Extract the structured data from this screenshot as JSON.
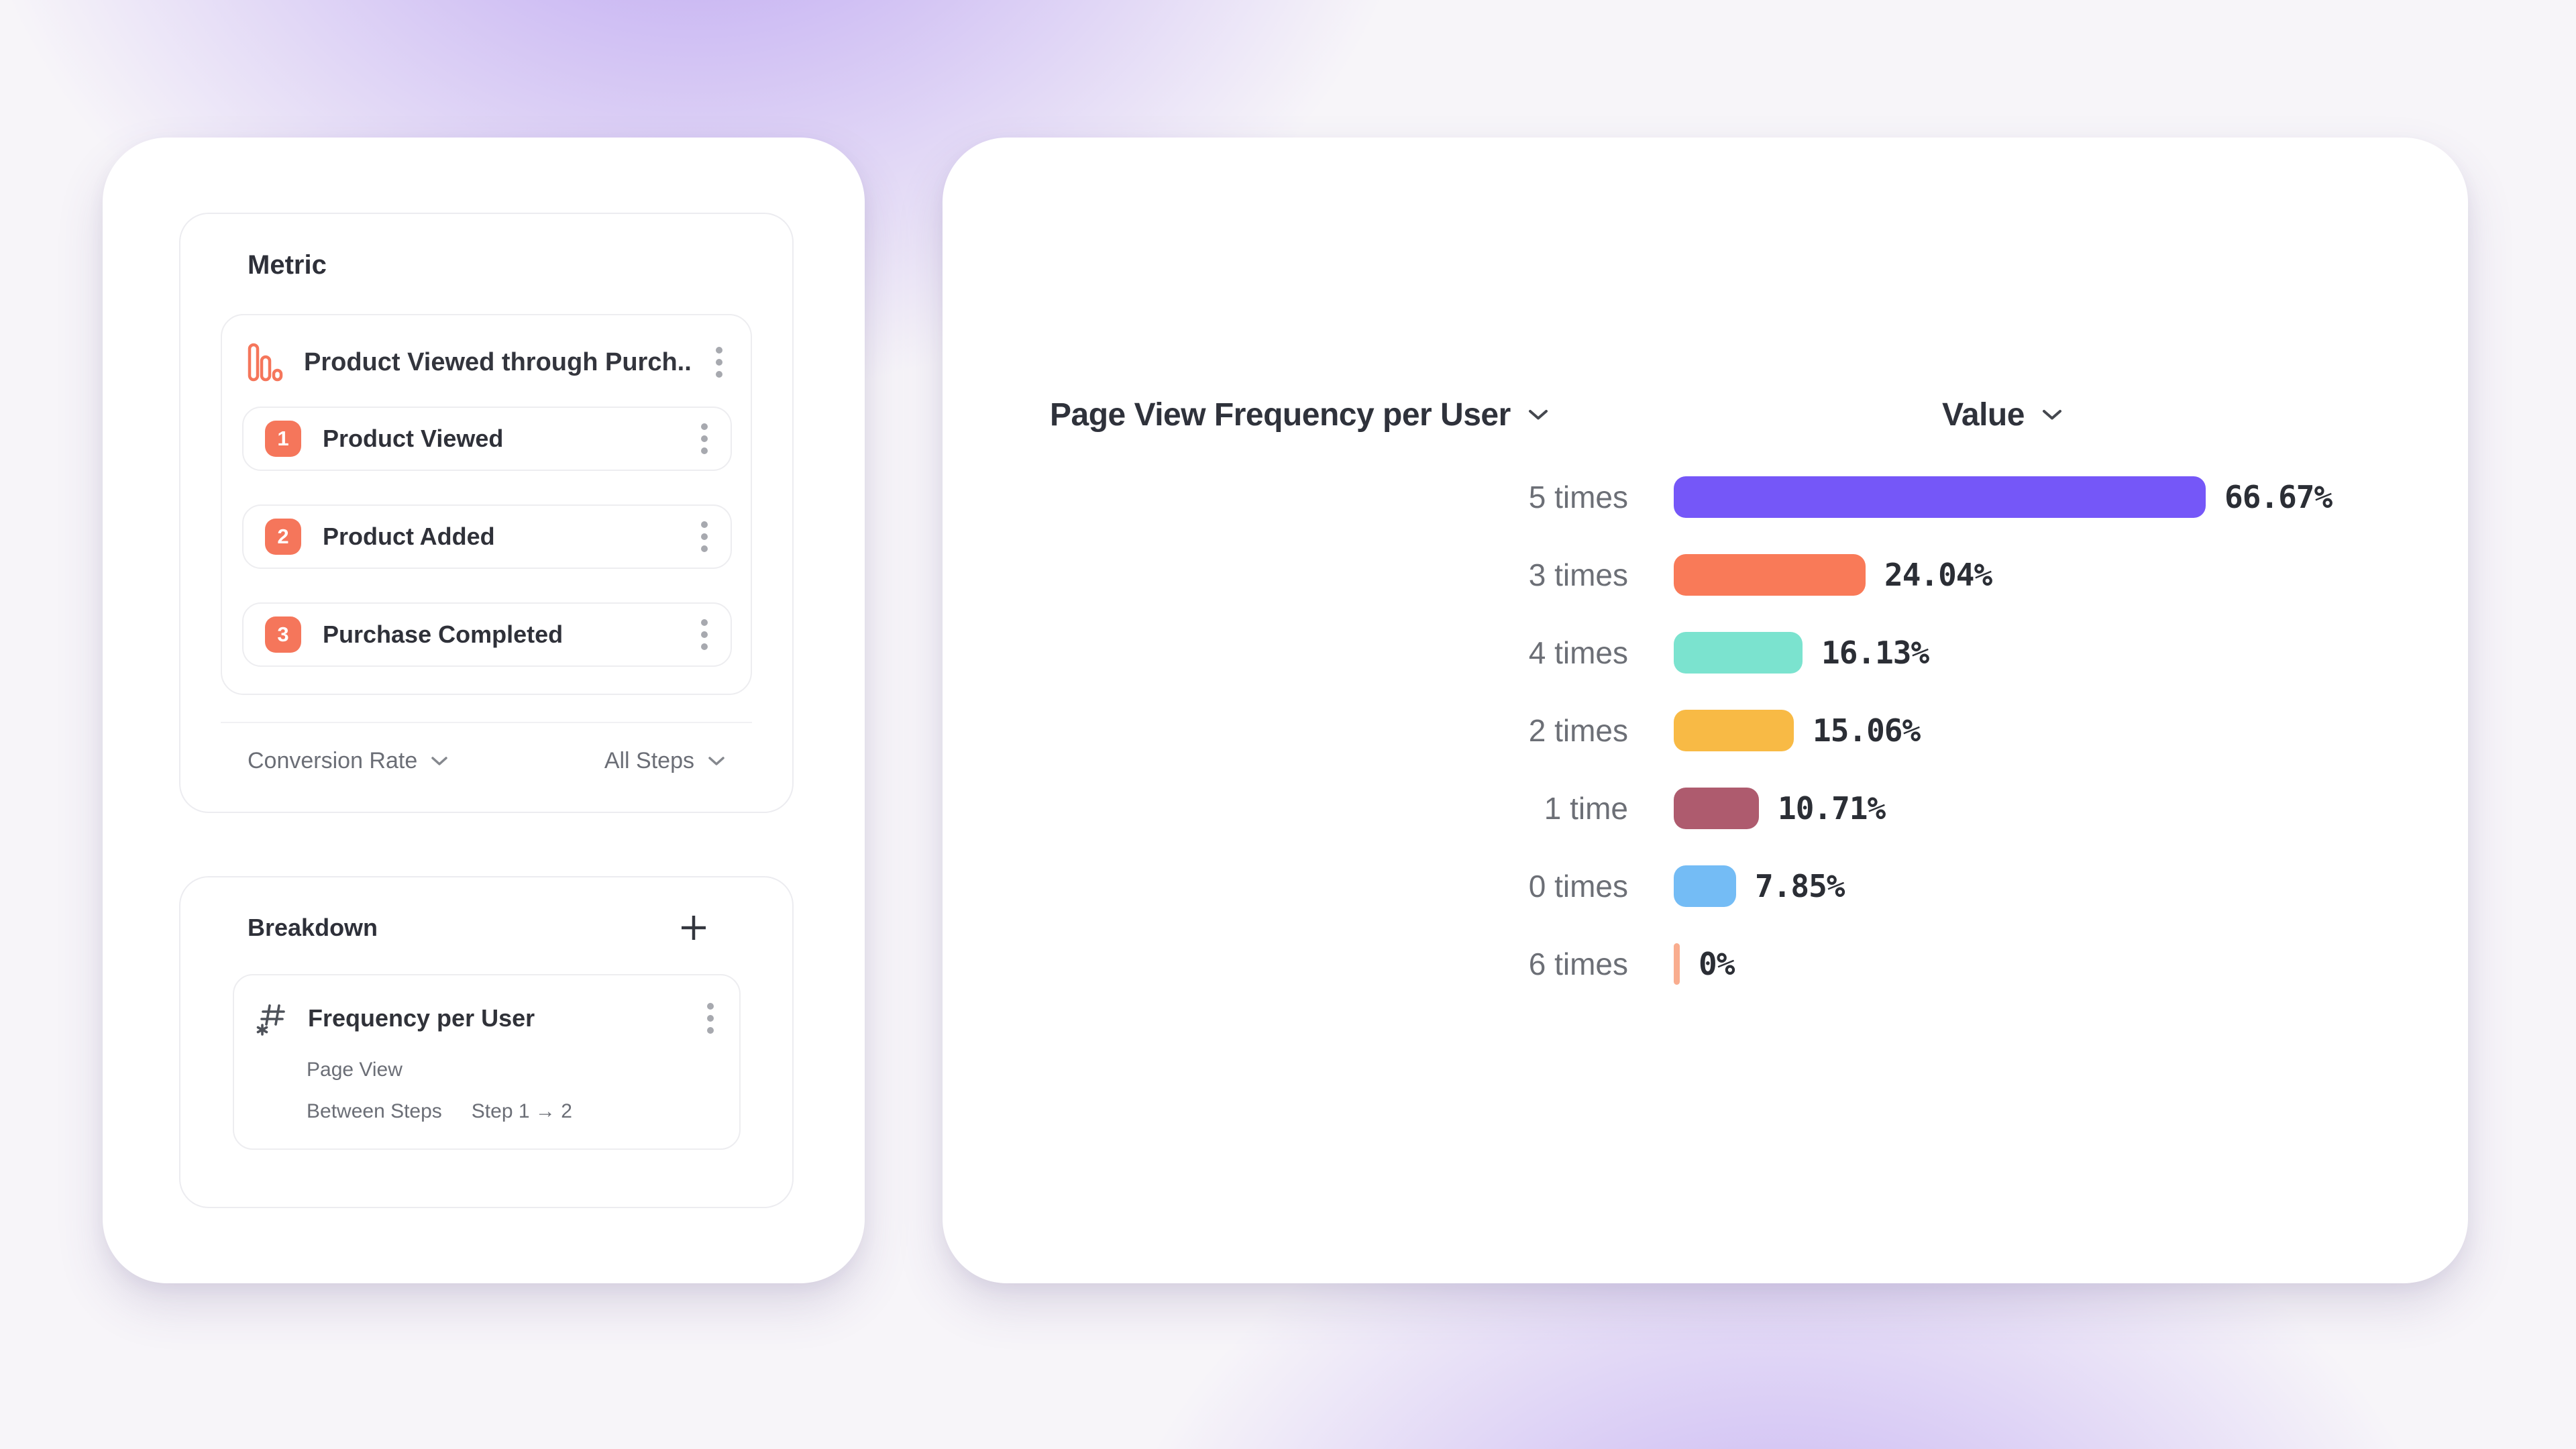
{
  "colors": {
    "step_badge": "#F5765B",
    "funnel_icon": "#F5765B",
    "card": "#FFFFFF",
    "background_glow": "#7C4DE8"
  },
  "metric_panel": {
    "title": "Metric",
    "funnel": {
      "icon": "funnel-chart-icon",
      "title": "Product Viewed through Purch...",
      "steps": [
        {
          "number": "1",
          "label": "Product Viewed"
        },
        {
          "number": "2",
          "label": "Product Added"
        },
        {
          "number": "3",
          "label": "Purchase Completed"
        }
      ]
    },
    "conversion_dropdown": "Conversion Rate",
    "steps_dropdown": "All Steps"
  },
  "breakdown_panel": {
    "title": "Breakdown",
    "add_button_icon": "plus-icon",
    "item": {
      "icon": "number-property-icon",
      "title": "Frequency per User",
      "event": "Page View",
      "scope_label": "Between Steps",
      "scope_value": "Step 1 → 2"
    }
  },
  "chart_data": {
    "type": "bar",
    "orientation": "horizontal",
    "title": "Page View Frequency per User",
    "value_header": "Value",
    "categories": [
      "5 times",
      "3 times",
      "4 times",
      "2 times",
      "1 time",
      "0 times",
      "6 times"
    ],
    "values": [
      66.67,
      24.04,
      16.13,
      15.06,
      10.71,
      7.85,
      0
    ],
    "value_labels": [
      "66.67%",
      "24.04%",
      "16.13%",
      "15.06%",
      "10.71%",
      "7.85%",
      "0%"
    ],
    "bar_colors": [
      "#7557F8",
      "#F97A58",
      "#7BE3CF",
      "#F8BA45",
      "#AE5B6E",
      "#74BCF5",
      "#F9AD8F"
    ],
    "xlim": [
      0,
      100
    ],
    "grid": "off",
    "legend": "none"
  }
}
